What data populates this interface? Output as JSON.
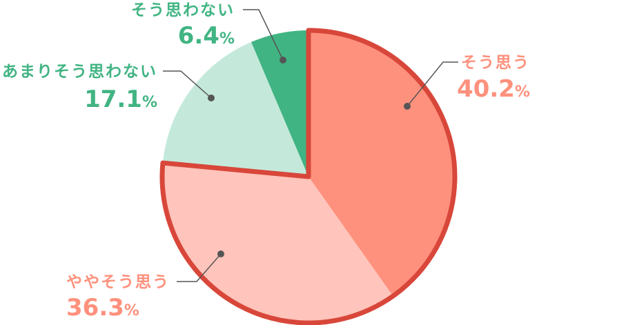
{
  "chart_data": {
    "type": "pie",
    "title": "",
    "start_angle_deg": 0,
    "direction": "clockwise",
    "slices": [
      {
        "label": "そう思う",
        "value": 40.2,
        "display": "40.2",
        "unit": "%",
        "color": "#fe917d",
        "label_color": "#fe917d",
        "highlight": true
      },
      {
        "label": "ややそう思う",
        "value": 36.3,
        "display": "36.3",
        "unit": "%",
        "color": "#ffc4bb",
        "label_color": "#fe917d",
        "highlight": true
      },
      {
        "label": "あまりそう思わない",
        "value": 17.1,
        "display": "17.1",
        "unit": "%",
        "color": "#c4e9db",
        "label_color": "#41b483",
        "highlight": false
      },
      {
        "label": "そう思わない",
        "value": 6.4,
        "display": "6.4",
        "unit": "%",
        "color": "#41b483",
        "label_color": "#41b483",
        "highlight": false
      }
    ],
    "highlight_outline_color": "#d8473a",
    "leader_color": "#555555"
  }
}
